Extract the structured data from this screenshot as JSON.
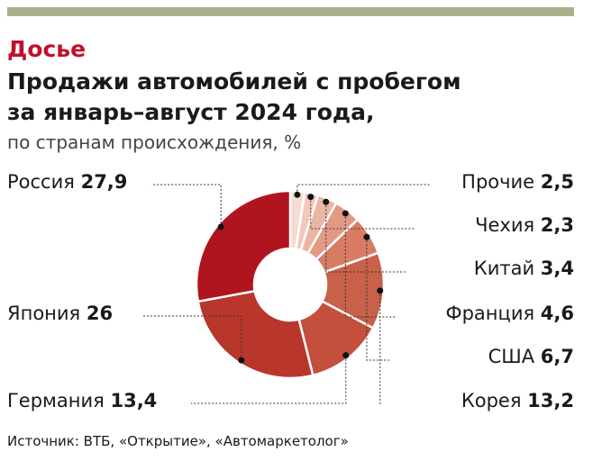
{
  "header": {
    "section": "Досье",
    "title_line1": "Продажи автомобилей с пробегом",
    "title_line2": "за январь–август 2024 года,",
    "subtitle": "по странам происхождения, %"
  },
  "source": "Источник: ВТБ, «Открытие», «Автомаркетолог»",
  "colors": {
    "background": "#ffffff",
    "top_bar": "#a8b28a",
    "section": "#c0102b",
    "leader": "#333333"
  },
  "chart_data": {
    "type": "donut",
    "unit": "%",
    "slices": [
      {
        "name": "Прочие",
        "value": "2,5",
        "num": 2.5,
        "color": "#f7dcd2"
      },
      {
        "name": "Чехия",
        "value": "2,3",
        "num": 2.3,
        "color": "#f2c8bb"
      },
      {
        "name": "Китай",
        "value": "3,4",
        "num": 3.4,
        "color": "#ecb4a3"
      },
      {
        "name": "Франция",
        "value": "4,6",
        "num": 4.6,
        "color": "#e39a84"
      },
      {
        "name": "США",
        "value": "6,7",
        "num": 6.7,
        "color": "#d87d64"
      },
      {
        "name": "Корея",
        "value": "13,2",
        "num": 13.2,
        "color": "#c9604a"
      },
      {
        "name": "Германия",
        "value": "13,4",
        "num": 13.4,
        "color": "#c44f3c"
      },
      {
        "name": "Япония",
        "value": "26",
        "num": 26,
        "color": "#b9362b"
      },
      {
        "name": "Россия",
        "value": "27,9",
        "num": 27.9,
        "color": "#b0151f"
      }
    ]
  }
}
